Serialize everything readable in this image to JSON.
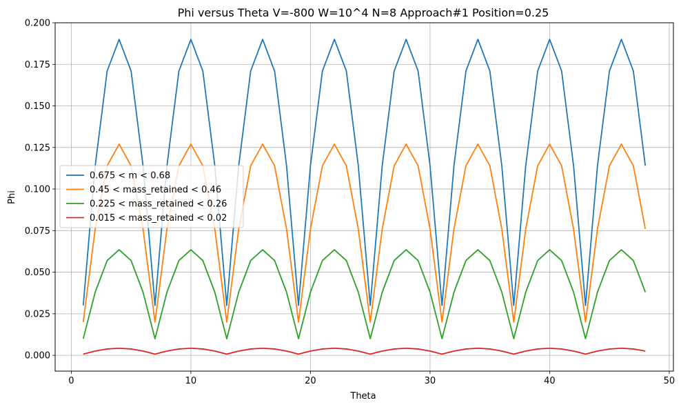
{
  "chart_data": {
    "type": "line",
    "title": "Phi versus Theta    V=-800    W=10^4    N=8    Approach#1  Position=0.25",
    "xlabel": "Theta",
    "ylabel": "Phi",
    "xlim": [
      -1.35,
      50.35
    ],
    "ylim": [
      -0.0095,
      0.2
    ],
    "xticks": [
      "0",
      "10",
      "20",
      "30",
      "40",
      "50"
    ],
    "yticks": [
      "0.000",
      "0.025",
      "0.050",
      "0.075",
      "0.100",
      "0.125",
      "0.150",
      "0.175",
      "0.200"
    ],
    "grid": true,
    "legend_position": "center-left",
    "x": [
      1,
      2,
      3,
      4,
      5,
      6,
      7,
      8,
      9,
      10,
      11,
      12,
      13,
      14,
      15,
      16,
      17,
      18,
      19,
      20,
      21,
      22,
      23,
      24,
      25,
      26,
      27,
      28,
      29,
      30,
      31,
      32,
      33,
      34,
      35,
      36,
      37,
      38,
      39,
      40,
      41,
      42,
      43,
      44,
      45,
      46,
      47,
      48
    ],
    "series": [
      {
        "name": "0.675 < m < 0.68",
        "color": "#1f77b4",
        "values": [
          0.03,
          0.114,
          0.171,
          0.19,
          0.171,
          0.114,
          0.03,
          0.114,
          0.171,
          0.19,
          0.171,
          0.114,
          0.03,
          0.114,
          0.171,
          0.19,
          0.171,
          0.114,
          0.03,
          0.114,
          0.171,
          0.19,
          0.171,
          0.114,
          0.03,
          0.114,
          0.171,
          0.19,
          0.171,
          0.114,
          0.03,
          0.114,
          0.171,
          0.19,
          0.171,
          0.114,
          0.03,
          0.114,
          0.171,
          0.19,
          0.171,
          0.114,
          0.03,
          0.114,
          0.171,
          0.19,
          0.171,
          0.114
        ]
      },
      {
        "name": "0.45 < mass_retained < 0.46",
        "color": "#ff7f0e",
        "values": [
          0.02,
          0.076,
          0.114,
          0.127,
          0.114,
          0.076,
          0.02,
          0.076,
          0.114,
          0.127,
          0.114,
          0.076,
          0.02,
          0.076,
          0.114,
          0.127,
          0.114,
          0.076,
          0.02,
          0.076,
          0.114,
          0.127,
          0.114,
          0.076,
          0.02,
          0.076,
          0.114,
          0.127,
          0.114,
          0.076,
          0.02,
          0.076,
          0.114,
          0.127,
          0.114,
          0.076,
          0.02,
          0.076,
          0.114,
          0.127,
          0.114,
          0.076,
          0.02,
          0.076,
          0.114,
          0.127,
          0.114,
          0.076
        ]
      },
      {
        "name": " 0.225 < mass_retained < 0.26",
        "color": "#2ca02c",
        "values": [
          0.01,
          0.038,
          0.057,
          0.0635,
          0.057,
          0.038,
          0.01,
          0.038,
          0.057,
          0.0635,
          0.057,
          0.038,
          0.01,
          0.038,
          0.057,
          0.0635,
          0.057,
          0.038,
          0.01,
          0.038,
          0.057,
          0.0635,
          0.057,
          0.038,
          0.01,
          0.038,
          0.057,
          0.0635,
          0.057,
          0.038,
          0.01,
          0.038,
          0.057,
          0.0635,
          0.057,
          0.038,
          0.01,
          0.038,
          0.057,
          0.0635,
          0.057,
          0.038,
          0.01,
          0.038,
          0.057,
          0.0635,
          0.057,
          0.038
        ]
      },
      {
        "name": "0.015 < mass_retained < 0.02",
        "color": "#d62728",
        "values": [
          0.0007,
          0.0026,
          0.0038,
          0.0043,
          0.0038,
          0.0026,
          0.0007,
          0.0026,
          0.0038,
          0.0043,
          0.0038,
          0.0026,
          0.0007,
          0.0026,
          0.0038,
          0.0043,
          0.0038,
          0.0026,
          0.0007,
          0.0026,
          0.0038,
          0.0043,
          0.0038,
          0.0026,
          0.0007,
          0.0026,
          0.0038,
          0.0043,
          0.0038,
          0.0026,
          0.0007,
          0.0026,
          0.0038,
          0.0043,
          0.0038,
          0.0026,
          0.0007,
          0.0026,
          0.0038,
          0.0043,
          0.0038,
          0.0026,
          0.0007,
          0.0026,
          0.0038,
          0.0043,
          0.0038,
          0.0026
        ]
      }
    ]
  }
}
